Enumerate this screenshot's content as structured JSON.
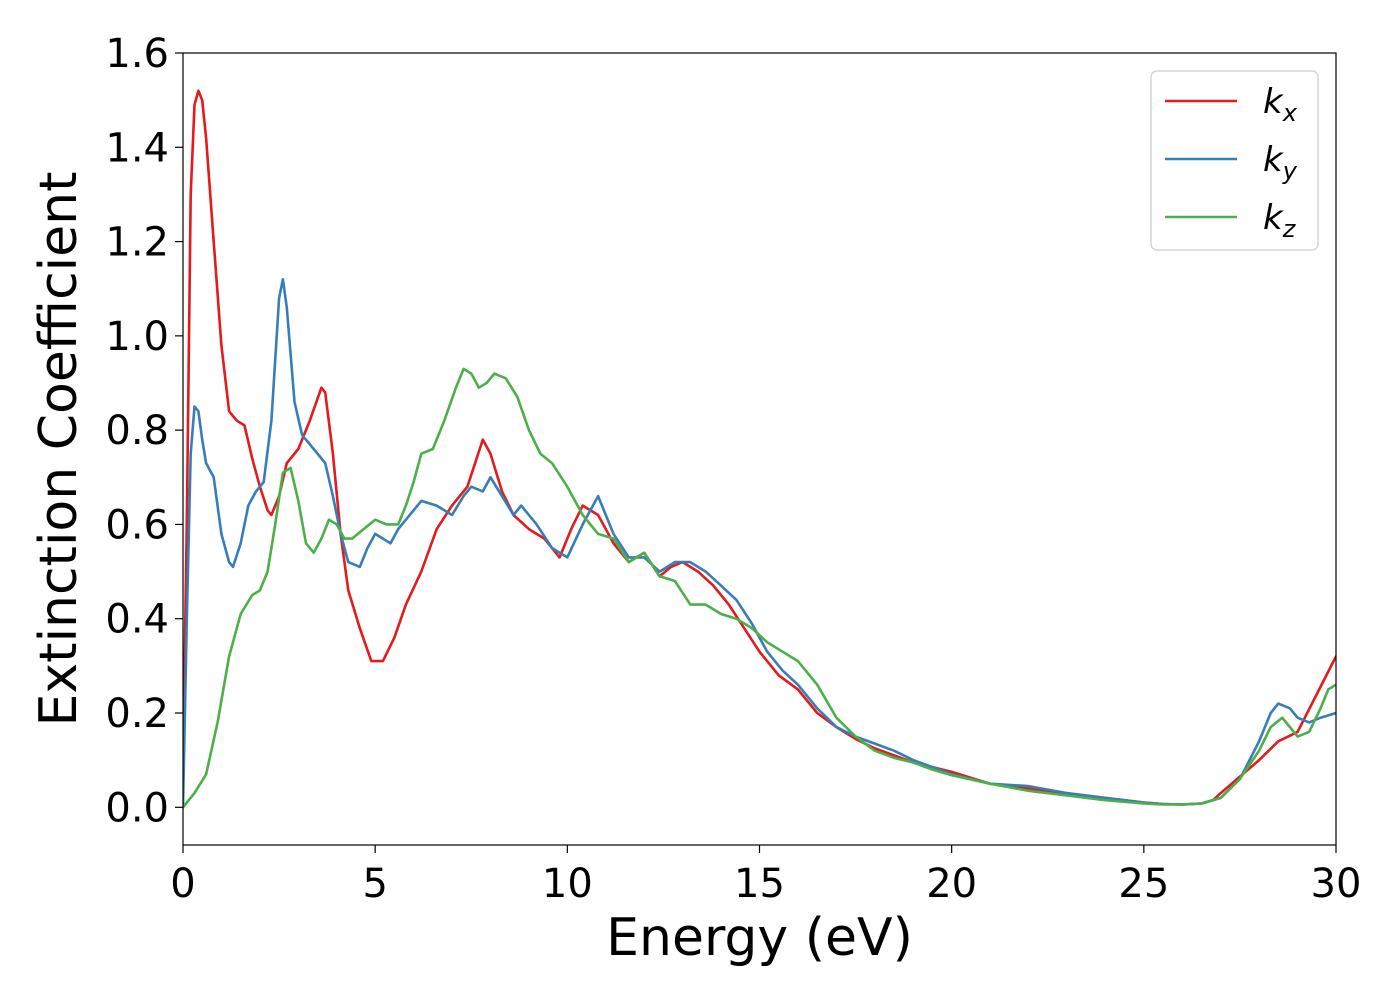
{
  "chart_data": {
    "type": "line",
    "xlabel": "Energy (eV)",
    "ylabel": "Extinction Coefficient",
    "xlim": [
      0,
      30
    ],
    "ylim": [
      -0.08,
      1.6
    ],
    "xticks": [
      "0",
      "5",
      "10",
      "15",
      "20",
      "25",
      "30"
    ],
    "yticks": [
      "0.0",
      "0.2",
      "0.4",
      "0.6",
      "0.8",
      "1.0",
      "1.2",
      "1.4",
      "1.6"
    ],
    "grid": false,
    "legend_position": "top-right",
    "series": [
      {
        "name": "k_x",
        "legend_base": "k",
        "legend_sub": "x",
        "color": "#e41a1c",
        "x": [
          0,
          0.1,
          0.2,
          0.3,
          0.4,
          0.5,
          0.6,
          0.8,
          1.0,
          1.2,
          1.4,
          1.6,
          1.8,
          2.0,
          2.2,
          2.3,
          2.5,
          2.7,
          3.0,
          3.3,
          3.6,
          3.7,
          3.9,
          4.1,
          4.3,
          4.6,
          4.9,
          5.2,
          5.5,
          5.8,
          6.2,
          6.6,
          7.0,
          7.4,
          7.8,
          8.0,
          8.3,
          8.6,
          9.0,
          9.4,
          9.8,
          10.1,
          10.4,
          10.8,
          11.2,
          11.6,
          12.0,
          12.4,
          12.7,
          13.0,
          13.4,
          13.8,
          14.2,
          14.6,
          15.0,
          15.5,
          16.0,
          16.5,
          17.0,
          17.5,
          18.0,
          18.5,
          19.0,
          19.5,
          20.0,
          21.0,
          22.0,
          23.0,
          24.0,
          25.0,
          25.5,
          26.0,
          26.5,
          26.8,
          27.0,
          27.5,
          28.0,
          28.5,
          29.0,
          29.5,
          30.0
        ],
        "y": [
          0.08,
          0.6,
          1.3,
          1.49,
          1.52,
          1.5,
          1.42,
          1.2,
          0.98,
          0.84,
          0.82,
          0.81,
          0.74,
          0.68,
          0.63,
          0.62,
          0.66,
          0.73,
          0.76,
          0.82,
          0.89,
          0.88,
          0.75,
          0.58,
          0.46,
          0.38,
          0.31,
          0.31,
          0.36,
          0.43,
          0.5,
          0.59,
          0.64,
          0.68,
          0.78,
          0.75,
          0.67,
          0.62,
          0.59,
          0.57,
          0.53,
          0.59,
          0.64,
          0.62,
          0.56,
          0.52,
          0.54,
          0.49,
          0.51,
          0.52,
          0.5,
          0.47,
          0.43,
          0.38,
          0.33,
          0.28,
          0.25,
          0.2,
          0.17,
          0.145,
          0.125,
          0.11,
          0.095,
          0.085,
          0.075,
          0.05,
          0.04,
          0.028,
          0.02,
          0.01,
          0.007,
          0.006,
          0.008,
          0.015,
          0.03,
          0.065,
          0.1,
          0.14,
          0.16,
          0.24,
          0.32
        ]
      },
      {
        "name": "k_y",
        "legend_base": "k",
        "legend_sub": "y",
        "color": "#377eb8",
        "x": [
          0,
          0.1,
          0.2,
          0.3,
          0.4,
          0.5,
          0.6,
          0.8,
          1.0,
          1.2,
          1.3,
          1.5,
          1.7,
          1.9,
          2.1,
          2.3,
          2.5,
          2.6,
          2.7,
          2.9,
          3.1,
          3.4,
          3.7,
          3.9,
          4.1,
          4.3,
          4.6,
          4.8,
          5.0,
          5.2,
          5.4,
          5.6,
          5.8,
          6.0,
          6.2,
          6.6,
          7.0,
          7.3,
          7.5,
          7.8,
          8.0,
          8.3,
          8.6,
          8.8,
          9.2,
          9.6,
          10.0,
          10.4,
          10.8,
          11.2,
          11.6,
          12.0,
          12.4,
          12.8,
          13.2,
          13.6,
          14.0,
          14.4,
          14.8,
          15.2,
          15.6,
          16.0,
          16.5,
          17.0,
          17.5,
          18.0,
          18.5,
          19.0,
          19.5,
          20.0,
          21.0,
          22.0,
          23.0,
          24.0,
          25.0,
          25.5,
          26.0,
          26.5,
          27.0,
          27.5,
          28.0,
          28.3,
          28.5,
          28.8,
          29.0,
          29.3,
          29.6,
          30.0
        ],
        "y": [
          0.0,
          0.4,
          0.75,
          0.85,
          0.84,
          0.78,
          0.73,
          0.7,
          0.58,
          0.52,
          0.51,
          0.56,
          0.64,
          0.67,
          0.69,
          0.82,
          1.08,
          1.12,
          1.06,
          0.86,
          0.79,
          0.76,
          0.73,
          0.66,
          0.58,
          0.52,
          0.51,
          0.55,
          0.58,
          0.57,
          0.56,
          0.59,
          0.61,
          0.63,
          0.65,
          0.64,
          0.62,
          0.66,
          0.68,
          0.67,
          0.7,
          0.66,
          0.62,
          0.64,
          0.6,
          0.55,
          0.53,
          0.6,
          0.66,
          0.58,
          0.53,
          0.53,
          0.5,
          0.52,
          0.52,
          0.5,
          0.47,
          0.44,
          0.39,
          0.33,
          0.29,
          0.26,
          0.21,
          0.17,
          0.15,
          0.135,
          0.12,
          0.1,
          0.085,
          0.07,
          0.05,
          0.045,
          0.03,
          0.02,
          0.01,
          0.007,
          0.006,
          0.008,
          0.02,
          0.06,
          0.14,
          0.2,
          0.22,
          0.21,
          0.19,
          0.18,
          0.19,
          0.2
        ]
      },
      {
        "name": "k_z",
        "legend_base": "k",
        "legend_sub": "z",
        "color": "#4daf4a",
        "x": [
          0,
          0.3,
          0.6,
          0.9,
          1.2,
          1.5,
          1.8,
          2.0,
          2.2,
          2.4,
          2.6,
          2.8,
          3.0,
          3.2,
          3.4,
          3.6,
          3.8,
          4.0,
          4.2,
          4.4,
          4.7,
          5.0,
          5.3,
          5.6,
          5.8,
          6.0,
          6.2,
          6.5,
          6.8,
          7.1,
          7.3,
          7.5,
          7.7,
          7.9,
          8.1,
          8.4,
          8.7,
          9.0,
          9.3,
          9.6,
          10.0,
          10.4,
          10.8,
          11.2,
          11.6,
          12.0,
          12.4,
          12.8,
          13.2,
          13.6,
          14.0,
          14.4,
          14.8,
          15.2,
          15.6,
          16.0,
          16.5,
          17.0,
          17.5,
          18.0,
          18.5,
          19.0,
          19.5,
          20.0,
          21.0,
          22.0,
          23.0,
          24.0,
          25.0,
          25.5,
          26.0,
          26.5,
          27.0,
          27.5,
          28.0,
          28.3,
          28.6,
          28.8,
          29.0,
          29.3,
          29.6,
          29.8,
          30.0
        ],
        "y": [
          0.0,
          0.03,
          0.07,
          0.18,
          0.32,
          0.41,
          0.45,
          0.46,
          0.5,
          0.6,
          0.71,
          0.72,
          0.65,
          0.56,
          0.54,
          0.57,
          0.61,
          0.6,
          0.57,
          0.57,
          0.59,
          0.61,
          0.6,
          0.6,
          0.64,
          0.69,
          0.75,
          0.76,
          0.82,
          0.89,
          0.93,
          0.92,
          0.89,
          0.9,
          0.92,
          0.91,
          0.87,
          0.8,
          0.75,
          0.73,
          0.68,
          0.62,
          0.58,
          0.57,
          0.52,
          0.54,
          0.49,
          0.48,
          0.43,
          0.43,
          0.41,
          0.4,
          0.38,
          0.35,
          0.33,
          0.31,
          0.26,
          0.19,
          0.15,
          0.12,
          0.105,
          0.095,
          0.08,
          0.068,
          0.05,
          0.035,
          0.025,
          0.015,
          0.008,
          0.006,
          0.006,
          0.008,
          0.02,
          0.06,
          0.12,
          0.17,
          0.19,
          0.17,
          0.15,
          0.16,
          0.21,
          0.25,
          0.26
        ]
      }
    ]
  }
}
